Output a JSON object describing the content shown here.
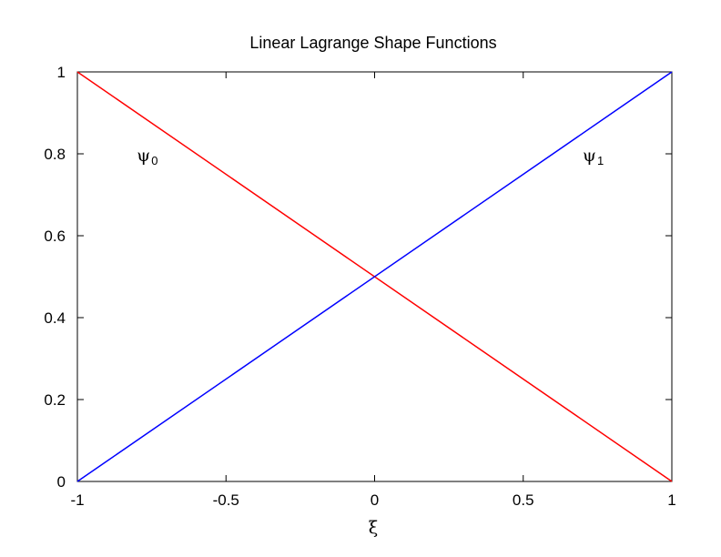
{
  "chart_data": {
    "type": "line",
    "title": "Linear Lagrange Shape Functions",
    "xlabel": "ξ",
    "ylabel": "",
    "xlim": [
      -1,
      1
    ],
    "ylim": [
      0,
      1
    ],
    "xticks": [
      -1,
      -0.5,
      0,
      0.5,
      1
    ],
    "xtick_labels": [
      "-1",
      "-0.5",
      "0",
      "0.5",
      "1"
    ],
    "yticks": [
      0,
      0.2,
      0.4,
      0.6,
      0.8,
      1
    ],
    "ytick_labels": [
      "0",
      "0.2",
      "0.4",
      "0.6",
      "0.8",
      "1"
    ],
    "grid": false,
    "legend": "none",
    "series": [
      {
        "x": [
          -1,
          1
        ],
        "y": [
          1,
          0
        ],
        "color": "#ff0000"
      },
      {
        "x": [
          -1,
          1
        ],
        "y": [
          0,
          1
        ],
        "color": "#0000ff"
      }
    ],
    "annotations": [
      {
        "text": "ψ",
        "subscript": "0",
        "x": -0.8,
        "y": 0.8
      },
      {
        "text": "ψ",
        "subscript": "1",
        "x": 0.7,
        "y": 0.8
      }
    ]
  }
}
